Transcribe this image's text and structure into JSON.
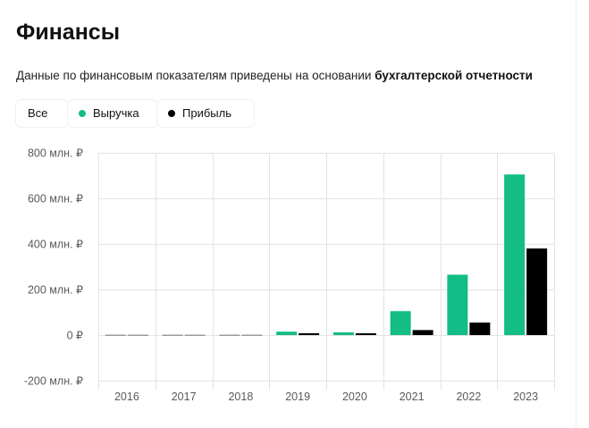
{
  "header": {
    "title": "Финансы",
    "subtitle_prefix": "Данные по финансовым показателям приведены на основании ",
    "subtitle_link": "бухгалтерской отчетности"
  },
  "filters": {
    "all_label": "Все",
    "revenue_label": "Выручка",
    "profit_label": "Прибыль"
  },
  "colors": {
    "revenue": "#12bd86",
    "profit": "#000000",
    "grid": "#e3e3e3",
    "zero_bar": "#9a9a9a"
  },
  "chart_data": {
    "type": "bar",
    "title": "",
    "xlabel": "",
    "ylabel": "",
    "ylim": [
      -200,
      800
    ],
    "y_ticks": [
      {
        "value": 800,
        "label": "800 млн. ₽"
      },
      {
        "value": 600,
        "label": "600 млн. ₽"
      },
      {
        "value": 400,
        "label": "400 млн. ₽"
      },
      {
        "value": 200,
        "label": "200 млн. ₽"
      },
      {
        "value": 0,
        "label": "0 ₽"
      },
      {
        "value": -200,
        "label": "-200 млн. ₽"
      }
    ],
    "categories": [
      "2016",
      "2017",
      "2018",
      "2019",
      "2020",
      "2021",
      "2022",
      "2023"
    ],
    "series": [
      {
        "name": "Выручка",
        "color": "#12bd86",
        "values": [
          0,
          0,
          0,
          15,
          12,
          105,
          265,
          705
        ]
      },
      {
        "name": "Прибыль",
        "color": "#000000",
        "values": [
          0,
          0,
          0,
          8,
          2,
          22,
          55,
          380
        ]
      }
    ],
    "grid": true
  }
}
